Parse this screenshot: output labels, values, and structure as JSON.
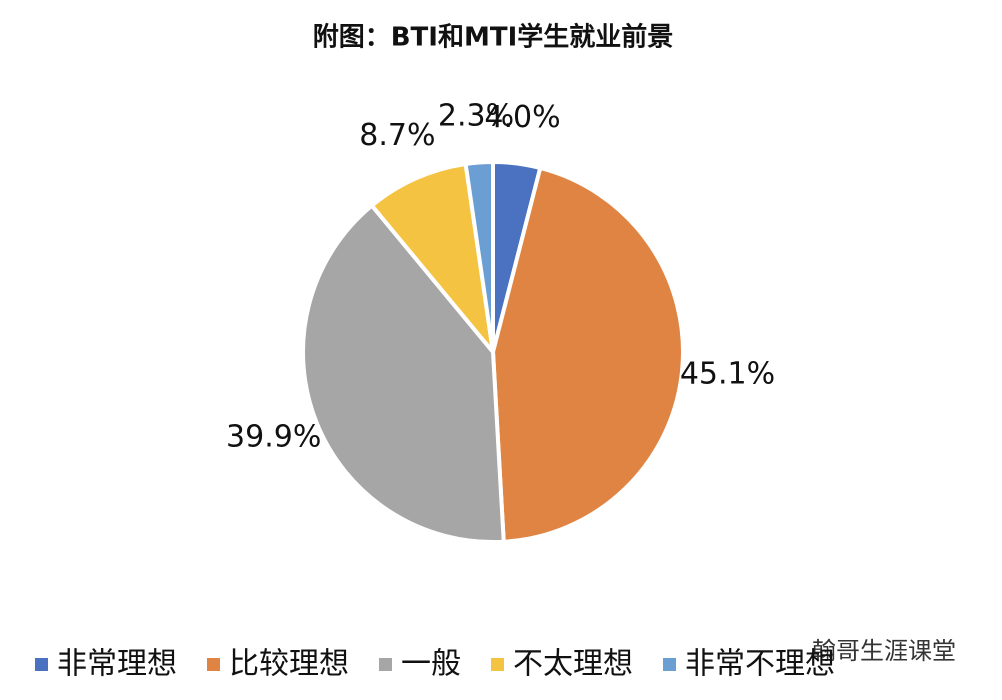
{
  "chart_data": {
    "type": "pie",
    "title": "附图：BTI和MTI学生就业前景",
    "categories": [
      "非常理想",
      "比较理想",
      "一般",
      "不太理想",
      "非常不理想"
    ],
    "values": [
      4.0,
      45.1,
      39.9,
      8.7,
      2.3
    ],
    "value_labels": [
      "4.0%",
      "45.1%",
      "39.9%",
      "8.7%",
      "2.3%"
    ],
    "colors": [
      "#4a72c0",
      "#df8443",
      "#a6a6a6",
      "#f4c342",
      "#6b9fd4"
    ],
    "legend": "bottom",
    "watermark": "翰哥生涯课堂"
  }
}
